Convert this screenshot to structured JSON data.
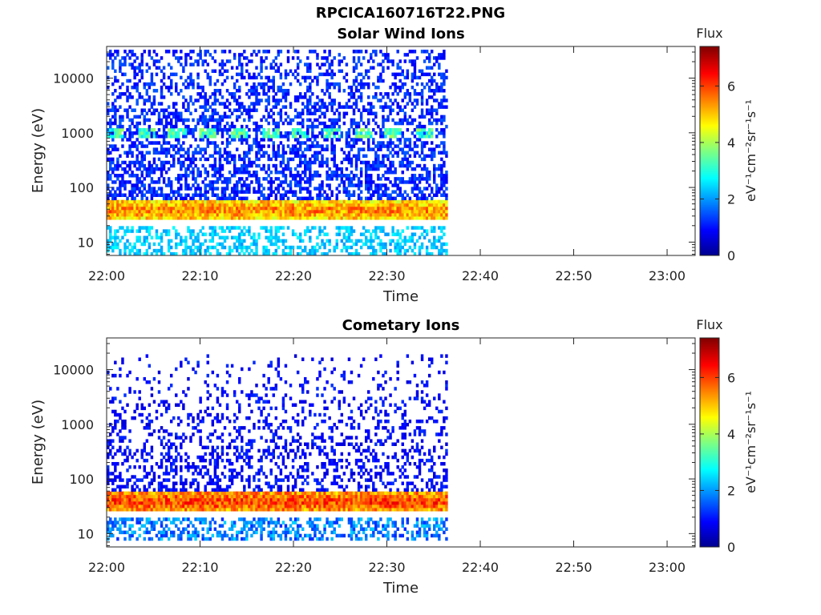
{
  "figure": {
    "filename": "RPCICA160716T22.PNG"
  },
  "colors": {
    "colormap": "jet",
    "axis": "#262626",
    "background": "#ffffff"
  },
  "chart_data": [
    {
      "type": "heatmap",
      "title": "Solar Wind Ions",
      "xlabel": "Time",
      "ylabel": "Energy (eV)",
      "x_ticks": [
        "22:00",
        "22:10",
        "22:20",
        "22:30",
        "22:40",
        "22:50",
        "23:00"
      ],
      "x_range_minutes": [
        0,
        63
      ],
      "data_end_minute": 36.5,
      "y_scale": "log",
      "y_range": [
        5.7,
        38000
      ],
      "y_ticks": [
        "10",
        "100",
        "1000",
        "10000"
      ],
      "colorbar": {
        "label": "Flux",
        "units": "eV⁻¹cm⁻²sr⁻¹s⁻¹",
        "range": [
          0,
          7.4
        ],
        "ticks": [
          "0",
          "2",
          "4",
          "6"
        ]
      },
      "features": [
        {
          "band": "core",
          "energy_range_eV": [
            25,
            60
          ],
          "flux_range": [
            4.0,
            6.3
          ]
        },
        {
          "band": "low",
          "energy_range_eV": [
            6,
            20
          ],
          "flux_range": [
            2.0,
            2.8
          ]
        },
        {
          "band": "mid",
          "energy_range_eV": [
            800,
            1300
          ],
          "flux_range": [
            2.5,
            4.0
          ]
        },
        {
          "band": "background",
          "energy_range_eV": [
            60,
            35000
          ],
          "flux_range": [
            0.8,
            1.6
          ]
        }
      ]
    },
    {
      "type": "heatmap",
      "title": "Cometary Ions",
      "xlabel": "Time",
      "ylabel": "Energy (eV)",
      "x_ticks": [
        "22:00",
        "22:10",
        "22:20",
        "22:30",
        "22:40",
        "22:50",
        "23:00"
      ],
      "x_range_minutes": [
        0,
        63
      ],
      "data_end_minute": 36.5,
      "y_scale": "log",
      "y_range": [
        5.7,
        38000
      ],
      "y_ticks": [
        "10",
        "100",
        "1000",
        "10000"
      ],
      "colorbar": {
        "label": "Flux",
        "units": "eV⁻¹cm⁻²sr⁻¹s⁻¹",
        "range": [
          0,
          7.4
        ],
        "ticks": [
          "0",
          "2",
          "4",
          "6"
        ]
      },
      "features": [
        {
          "band": "core",
          "energy_range_eV": [
            25,
            60
          ],
          "flux_range": [
            4.5,
            6.8
          ]
        },
        {
          "band": "low",
          "energy_range_eV": [
            8,
            20
          ],
          "flux_range": [
            1.2,
            2.5
          ]
        },
        {
          "band": "background",
          "energy_range_eV": [
            60,
            20000
          ],
          "flux_range": [
            0.6,
            1.3
          ]
        }
      ]
    }
  ]
}
